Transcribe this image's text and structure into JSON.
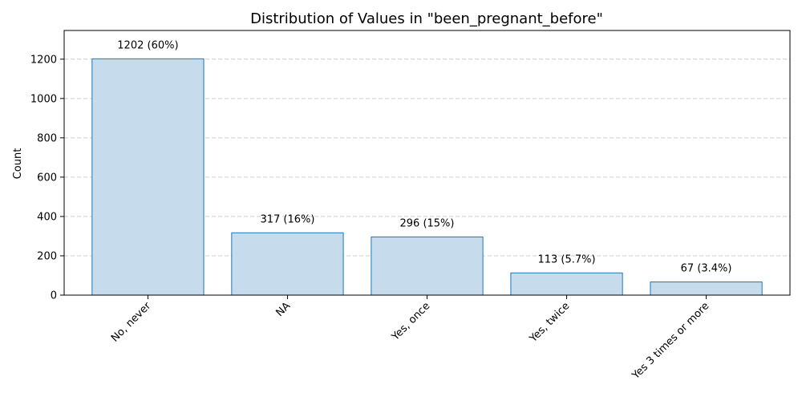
{
  "chart_data": {
    "type": "bar",
    "title": "Distribution of Values in \"been_pregnant_before\"",
    "xlabel": "",
    "ylabel": "Count",
    "categories": [
      "No, never",
      "NA",
      "Yes, once",
      "Yes, twice",
      "Yes 3 times or more"
    ],
    "values": [
      1202,
      317,
      296,
      113,
      67
    ],
    "data_labels": [
      "1202 (60%)",
      "317 (16%)",
      "296 (15%)",
      "113 (5.7%)",
      "67 (3.4%)"
    ],
    "yticks": [
      0,
      200,
      400,
      600,
      800,
      1000,
      1200
    ],
    "ylim": [
      0,
      1346
    ],
    "grid": "y-dashed",
    "legend": "none",
    "colors": {
      "bar_fill": "#c6dcec",
      "bar_edge": "#1f77b4",
      "grid": "#cccccc",
      "axis": "#000000"
    }
  }
}
